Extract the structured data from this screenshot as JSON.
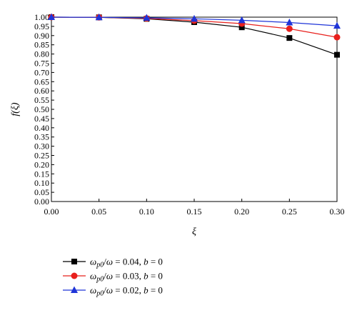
{
  "chart_data": {
    "type": "line",
    "xlabel": "ξ",
    "ylabel": "f(ξ)",
    "xlim": [
      0.0,
      0.3
    ],
    "ylim": [
      0.0,
      1.0
    ],
    "x_ticks": [
      "0.00",
      "0.05",
      "0.10",
      "0.15",
      "0.20",
      "0.25",
      "0.30"
    ],
    "y_ticks": [
      "0.00",
      "0.05",
      "0.10",
      "0.15",
      "0.20",
      "0.25",
      "0.30",
      "0.35",
      "0.40",
      "0.45",
      "0.50",
      "0.55",
      "0.60",
      "0.65",
      "0.70",
      "0.75",
      "0.80",
      "0.85",
      "0.90",
      "0.95",
      "1.00"
    ],
    "grid": false,
    "legend_position": "bottom",
    "x": [
      0.0,
      0.05,
      0.1,
      0.15,
      0.2,
      0.25,
      0.3
    ],
    "series": [
      {
        "name": "ω_p0/ω = 0.04, b = 0",
        "legend": {
          "omega_p": "ω",
          "sub": "p0",
          "rest1": "/",
          "omega": "ω",
          "rest2": " = 0.04, ",
          "b": "b",
          "rest3": " = 0"
        },
        "color": "#000000",
        "marker": "square",
        "values": [
          1.0,
          0.999,
          0.991,
          0.973,
          0.945,
          0.887,
          0.796
        ]
      },
      {
        "name": "ω_p0/ω = 0.03, b = 0",
        "legend": {
          "omega_p": "ω",
          "sub": "p0",
          "rest1": "/",
          "omega": "ω",
          "rest2": " = 0.03, ",
          "b": "b",
          "rest3": " = 0"
        },
        "color": "#e8201c",
        "marker": "circle",
        "values": [
          1.0,
          0.999,
          0.993,
          0.981,
          0.965,
          0.937,
          0.891
        ]
      },
      {
        "name": "ω_p0/ω = 0.02, b = 0",
        "legend": {
          "omega_p": "ω",
          "sub": "p0",
          "rest1": "/",
          "omega": "ω",
          "rest2": " = 0.02, ",
          "b": "b",
          "rest3": " = 0"
        },
        "color": "#1f35d8",
        "marker": "triangle",
        "values": [
          1.0,
          0.999,
          0.996,
          0.991,
          0.983,
          0.971,
          0.953
        ]
      }
    ]
  }
}
